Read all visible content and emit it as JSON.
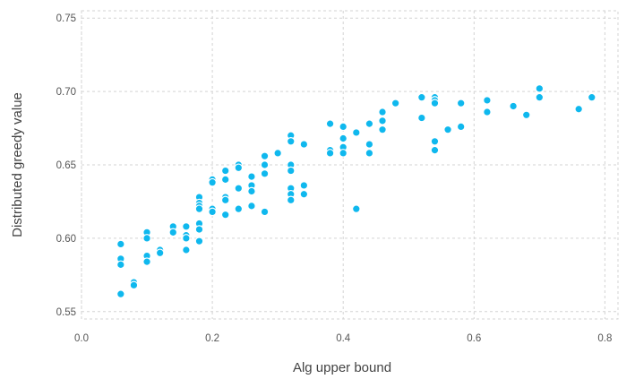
{
  "chart_data": {
    "type": "scatter",
    "title": "",
    "xlabel": "Alg upper bound",
    "ylabel": "Distributed greedy value",
    "xlim": [
      0.0,
      0.82
    ],
    "ylim": [
      0.545,
      0.755
    ],
    "xticks": [
      0.0,
      0.2,
      0.4,
      0.6,
      0.8
    ],
    "xtick_labels": [
      "0.0",
      "0.2",
      "0.4",
      "0.6",
      "0.8"
    ],
    "yticks": [
      0.55,
      0.6,
      0.65,
      0.7,
      0.75
    ],
    "ytick_labels": [
      "0.55",
      "0.60",
      "0.65",
      "0.70",
      "0.75"
    ],
    "grid": true,
    "marker_color": "#0fb8ee",
    "series": [
      {
        "points": [
          [
            0.06,
            0.596
          ],
          [
            0.06,
            0.586
          ],
          [
            0.06,
            0.582
          ],
          [
            0.06,
            0.562
          ],
          [
            0.08,
            0.57
          ],
          [
            0.08,
            0.568
          ],
          [
            0.1,
            0.604
          ],
          [
            0.1,
            0.6
          ],
          [
            0.1,
            0.588
          ],
          [
            0.1,
            0.584
          ],
          [
            0.12,
            0.592
          ],
          [
            0.12,
            0.59
          ],
          [
            0.14,
            0.608
          ],
          [
            0.14,
            0.604
          ],
          [
            0.16,
            0.608
          ],
          [
            0.16,
            0.602
          ],
          [
            0.16,
            0.6
          ],
          [
            0.16,
            0.592
          ],
          [
            0.18,
            0.628
          ],
          [
            0.18,
            0.624
          ],
          [
            0.18,
            0.622
          ],
          [
            0.18,
            0.62
          ],
          [
            0.18,
            0.61
          ],
          [
            0.18,
            0.606
          ],
          [
            0.18,
            0.598
          ],
          [
            0.2,
            0.64
          ],
          [
            0.2,
            0.638
          ],
          [
            0.2,
            0.62
          ],
          [
            0.2,
            0.618
          ],
          [
            0.22,
            0.646
          ],
          [
            0.22,
            0.64
          ],
          [
            0.22,
            0.628
          ],
          [
            0.22,
            0.626
          ],
          [
            0.22,
            0.616
          ],
          [
            0.24,
            0.65
          ],
          [
            0.24,
            0.648
          ],
          [
            0.24,
            0.634
          ],
          [
            0.24,
            0.62
          ],
          [
            0.26,
            0.642
          ],
          [
            0.26,
            0.636
          ],
          [
            0.26,
            0.632
          ],
          [
            0.26,
            0.622
          ],
          [
            0.28,
            0.656
          ],
          [
            0.28,
            0.65
          ],
          [
            0.28,
            0.644
          ],
          [
            0.28,
            0.618
          ],
          [
            0.3,
            0.658
          ],
          [
            0.32,
            0.67
          ],
          [
            0.32,
            0.666
          ],
          [
            0.32,
            0.65
          ],
          [
            0.32,
            0.646
          ],
          [
            0.32,
            0.634
          ],
          [
            0.32,
            0.63
          ],
          [
            0.32,
            0.626
          ],
          [
            0.34,
            0.664
          ],
          [
            0.34,
            0.636
          ],
          [
            0.34,
            0.63
          ],
          [
            0.38,
            0.678
          ],
          [
            0.38,
            0.66
          ],
          [
            0.38,
            0.658
          ],
          [
            0.4,
            0.676
          ],
          [
            0.4,
            0.668
          ],
          [
            0.4,
            0.662
          ],
          [
            0.4,
            0.658
          ],
          [
            0.42,
            0.672
          ],
          [
            0.42,
            0.62
          ],
          [
            0.44,
            0.678
          ],
          [
            0.44,
            0.664
          ],
          [
            0.44,
            0.658
          ],
          [
            0.46,
            0.686
          ],
          [
            0.46,
            0.68
          ],
          [
            0.46,
            0.674
          ],
          [
            0.48,
            0.692
          ],
          [
            0.52,
            0.696
          ],
          [
            0.52,
            0.682
          ],
          [
            0.54,
            0.696
          ],
          [
            0.54,
            0.694
          ],
          [
            0.54,
            0.692
          ],
          [
            0.54,
            0.666
          ],
          [
            0.54,
            0.66
          ],
          [
            0.56,
            0.674
          ],
          [
            0.58,
            0.692
          ],
          [
            0.58,
            0.676
          ],
          [
            0.62,
            0.694
          ],
          [
            0.62,
            0.686
          ],
          [
            0.66,
            0.69
          ],
          [
            0.68,
            0.684
          ],
          [
            0.7,
            0.702
          ],
          [
            0.7,
            0.696
          ],
          [
            0.76,
            0.688
          ],
          [
            0.78,
            0.696
          ]
        ]
      }
    ]
  }
}
